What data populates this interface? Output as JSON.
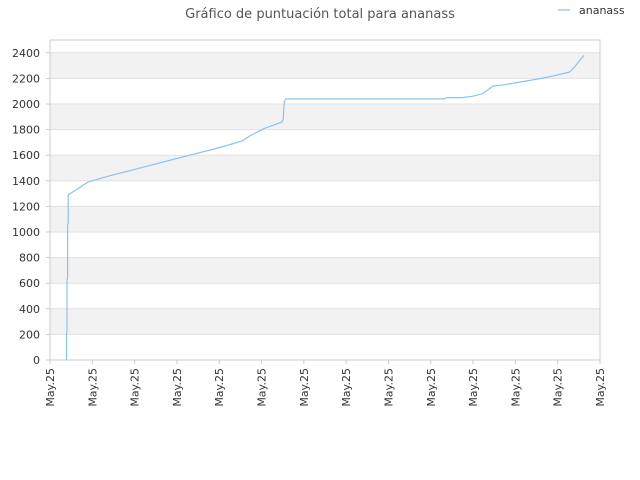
{
  "chart_data": {
    "type": "line",
    "title": "Gráfico de puntuación total para ananass",
    "legend": {
      "position": "top-right"
    },
    "series": [
      {
        "name": "ananass",
        "color": "#88c4f0",
        "points": [
          [
            0.03,
            0
          ],
          [
            0.03,
            200
          ],
          [
            0.031,
            220
          ],
          [
            0.031,
            620
          ],
          [
            0.032,
            650
          ],
          [
            0.032,
            1050
          ],
          [
            0.033,
            1070
          ],
          [
            0.033,
            1290
          ],
          [
            0.069,
            1390
          ],
          [
            0.109,
            1440
          ],
          [
            0.209,
            1550
          ],
          [
            0.309,
            1660
          ],
          [
            0.349,
            1710
          ],
          [
            0.363,
            1750
          ],
          [
            0.39,
            1810
          ],
          [
            0.403,
            1830
          ],
          [
            0.422,
            1860
          ],
          [
            0.424,
            1880
          ],
          [
            0.426,
            2020
          ],
          [
            0.429,
            2040
          ],
          [
            0.453,
            2040
          ],
          [
            0.5,
            2040
          ],
          [
            0.6,
            2040
          ],
          [
            0.7,
            2040
          ],
          [
            0.715,
            2040
          ],
          [
            0.723,
            2050
          ],
          [
            0.75,
            2050
          ],
          [
            0.768,
            2060
          ],
          [
            0.786,
            2080
          ],
          [
            0.796,
            2110
          ],
          [
            0.805,
            2140
          ],
          [
            0.825,
            2150
          ],
          [
            0.866,
            2180
          ],
          [
            0.906,
            2210
          ],
          [
            0.945,
            2250
          ],
          [
            0.954,
            2290
          ],
          [
            0.963,
            2340
          ],
          [
            0.971,
            2380
          ]
        ]
      }
    ],
    "x_ticks": [
      "May.25",
      "May.25",
      "May.25",
      "May.25",
      "May.25",
      "May.25",
      "May.25",
      "May.25",
      "May.25",
      "May.25",
      "May.25",
      "May.25",
      "May.25",
      "May.25"
    ],
    "y_ticks": [
      0,
      200,
      400,
      600,
      800,
      1000,
      1200,
      1400,
      1600,
      1800,
      2000,
      2200,
      2400
    ],
    "xlim": [
      0,
      1
    ],
    "ylim": [
      0,
      2500
    ],
    "grid": true,
    "band_color": "#f2f2f2",
    "grid_color": "#e2e2e2",
    "axis_color": "#cccccc"
  }
}
